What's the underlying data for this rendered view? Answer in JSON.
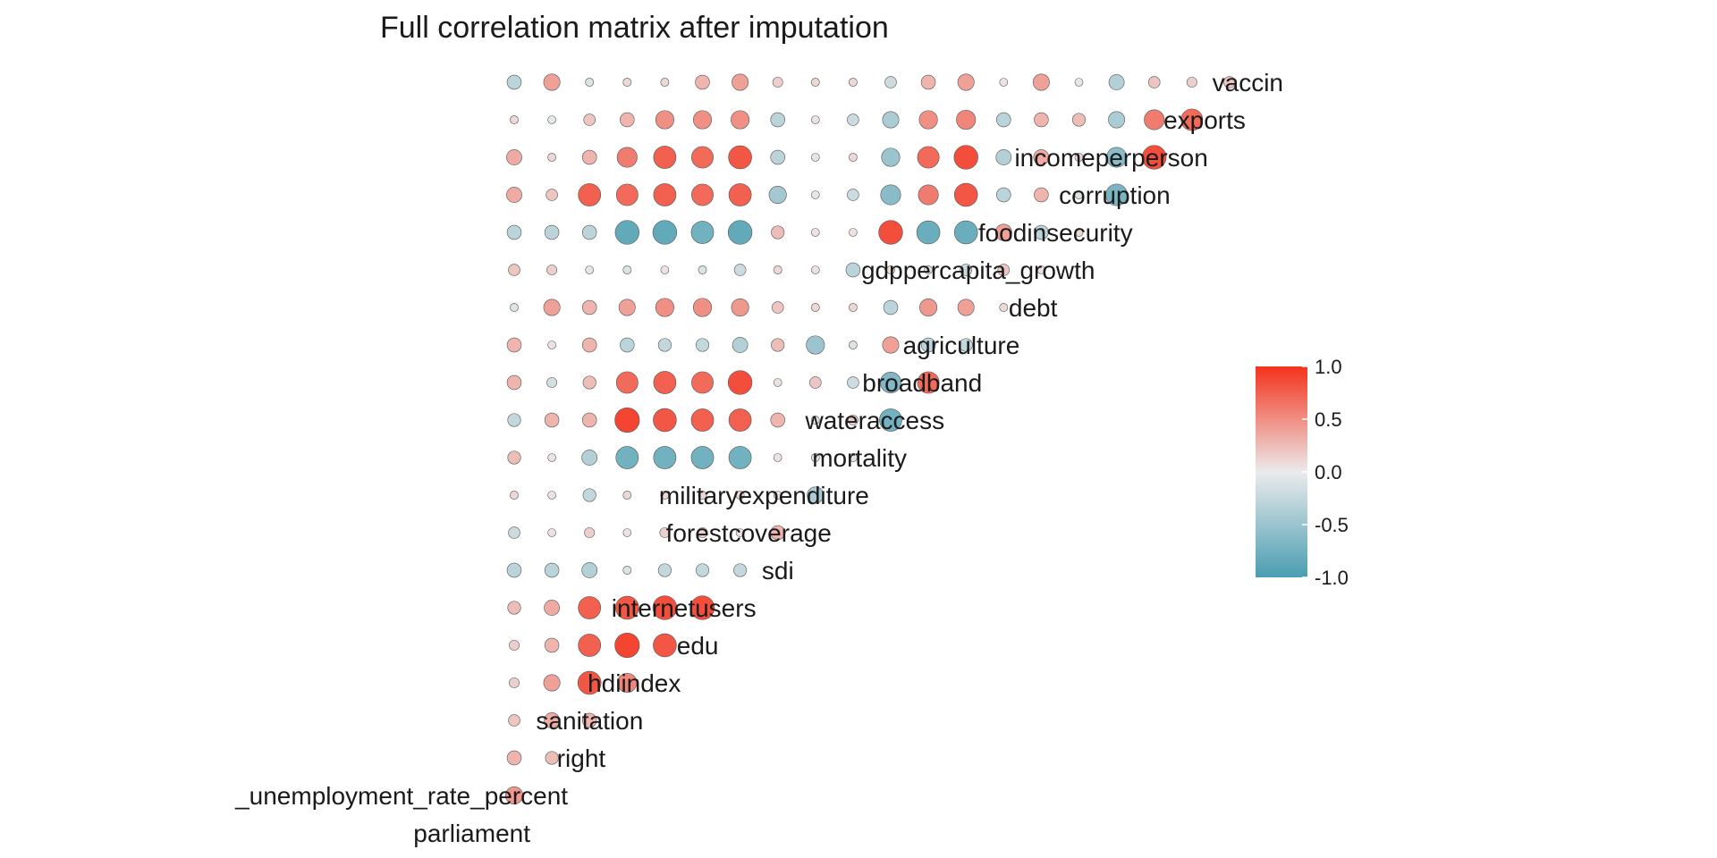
{
  "chart_data": {
    "type": "heatmap",
    "subtype": "correlation-circle-matrix",
    "title": "Full correlation matrix after imputation",
    "variables": [
      "parliament",
      "_unemployment_rate_percent",
      "right",
      "sanitation",
      "hdiindex",
      "edu",
      "internetusers",
      "sdi",
      "forestcoverage",
      "militaryexpenditure",
      "mortality",
      "wateraccess",
      "broadband",
      "agriculture",
      "debt",
      "gdppercapita_growth",
      "foodinsecurity",
      "corruption",
      "incomeperperson",
      "exports",
      "vaccin"
    ],
    "correlations": [
      [
        0.45
      ],
      [
        0.3,
        0.25
      ],
      [
        0.2,
        0.35,
        0.3
      ],
      [
        0.15,
        0.4,
        0.8,
        0.55
      ],
      [
        0.15,
        0.3,
        0.75,
        0.9,
        0.8
      ],
      [
        0.25,
        0.35,
        0.75,
        0.8,
        0.85,
        0.85
      ],
      [
        -0.3,
        -0.3,
        -0.35,
        -0.1,
        -0.25,
        -0.25,
        -0.25
      ],
      [
        -0.2,
        0.05,
        0.15,
        0.05,
        0.15,
        0.15,
        0.05,
        0.3
      ],
      [
        0.1,
        0.05,
        -0.25,
        0.1,
        0.1,
        0.1,
        0.1,
        0.05,
        -0.4
      ],
      [
        0.25,
        0.05,
        -0.35,
        -0.75,
        -0.75,
        -0.75,
        -0.75,
        0.05,
        -0.1,
        -0.1
      ],
      [
        -0.25,
        0.3,
        0.3,
        0.9,
        0.8,
        0.75,
        0.75,
        0.3,
        -0.1,
        0.15,
        -0.75
      ],
      [
        0.3,
        -0.15,
        0.25,
        0.7,
        0.75,
        0.7,
        0.85,
        0.05,
        0.2,
        -0.2,
        -0.65,
        0.7
      ],
      [
        0.3,
        0.05,
        0.3,
        -0.3,
        -0.25,
        -0.25,
        -0.35,
        0.25,
        -0.5,
        -0.1,
        0.4,
        -0.3,
        -0.25
      ],
      [
        -0.1,
        0.4,
        0.3,
        0.4,
        0.5,
        0.5,
        0.45,
        0.2,
        0.1,
        0.1,
        -0.3,
        0.45,
        0.4,
        0.1
      ],
      [
        0.2,
        0.15,
        -0.05,
        -0.1,
        0.05,
        -0.1,
        -0.2,
        0.1,
        0.05,
        -0.3,
        0.1,
        -0.1,
        -0.2,
        0.2,
        0.05
      ],
      [
        -0.3,
        -0.3,
        -0.3,
        -0.85,
        -0.85,
        -0.75,
        -0.85,
        0.25,
        0.05,
        0.05,
        0.85,
        -0.8,
        -0.8,
        0.4,
        -0.3,
        0.1
      ],
      [
        0.35,
        0.2,
        0.75,
        0.7,
        0.75,
        0.7,
        0.75,
        -0.45,
        -0.05,
        -0.2,
        -0.6,
        0.6,
        0.8,
        -0.3,
        0.3,
        -0.1,
        -0.7
      ],
      [
        0.35,
        0.1,
        0.3,
        0.6,
        0.75,
        0.7,
        0.8,
        -0.3,
        0.05,
        0.1,
        -0.5,
        0.7,
        0.85,
        -0.35,
        0.35,
        0.1,
        -0.6,
        0.85
      ],
      [
        0.1,
        -0.05,
        0.2,
        0.3,
        0.5,
        0.5,
        0.5,
        -0.3,
        0.05,
        -0.2,
        -0.4,
        0.5,
        0.55,
        -0.3,
        0.3,
        0.25,
        -0.4,
        0.6,
        0.7
      ],
      [
        -0.3,
        0.4,
        -0.1,
        0.1,
        0.1,
        0.3,
        0.4,
        0.15,
        0.1,
        0.1,
        -0.2,
        0.3,
        0.4,
        0.05,
        0.4,
        -0.05,
        -0.35,
        0.2,
        0.15,
        0.2
      ]
    ],
    "legend": {
      "ticks": [
        1.0,
        0.5,
        0.0,
        -0.5,
        -1.0
      ],
      "tick_labels": [
        "1.0",
        "0.5",
        "0.0",
        "-0.5",
        "-1.0"
      ],
      "range": [
        -1.0,
        1.0
      ],
      "placement": "right"
    },
    "colors": {
      "negative": "#4a9db1",
      "neutral": "#ebebeb",
      "positive": "#f4321c"
    },
    "grid": false
  }
}
